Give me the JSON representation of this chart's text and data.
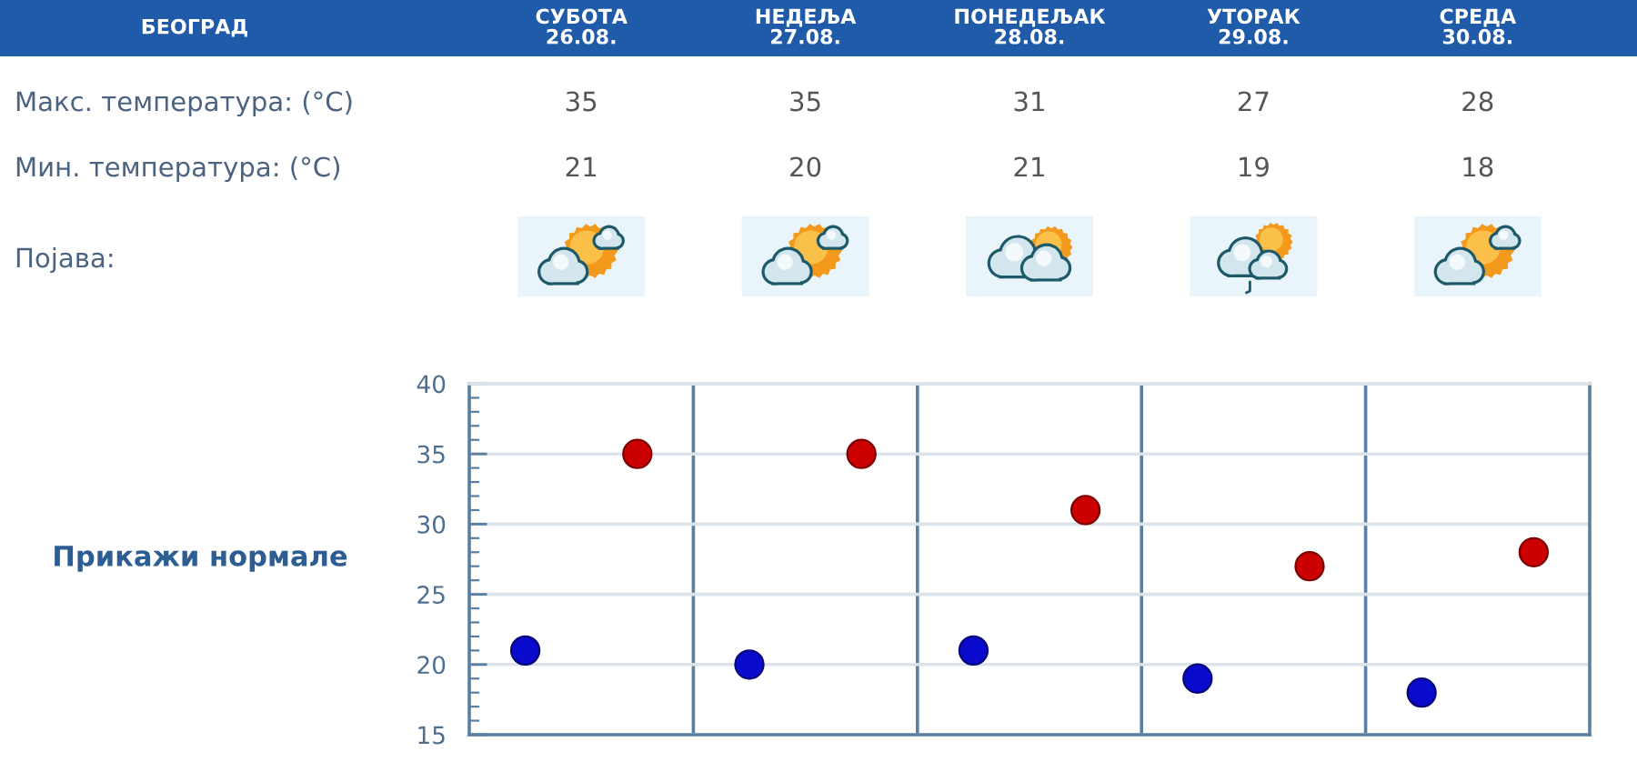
{
  "chart_data": {
    "type": "scatter",
    "title": "БЕОГРАД",
    "categories": [
      null,
      null,
      null,
      null,
      null
    ],
    "series": [
      {
        "color": "#cc0000",
        "values": [
          35,
          35,
          31,
          27,
          28
        ]
      },
      {
        "color": "#0a0acc",
        "values": [
          21,
          20,
          21,
          19,
          18
        ]
      }
    ],
    "ylim": [
      15,
      40
    ],
    "yticks": [
      15,
      20,
      25,
      30,
      35,
      40
    ],
    "grid": "y",
    "marker": "circle",
    "data_labels": true,
    "tick_labels": "y",
    "annotations": [
      "СУБОТА\n26.08.",
      "НЕДЕЉА\n27.08.",
      "ПОНЕДЕЉАК\n28.08.",
      "УТОРАК\n29.08.",
      "СРЕДА\n30.08.",
      "Макс. температура: (°C)",
      "Мин. температура: (°C)",
      "Појава:",
      "Прикажи нормале"
    ]
  }
}
